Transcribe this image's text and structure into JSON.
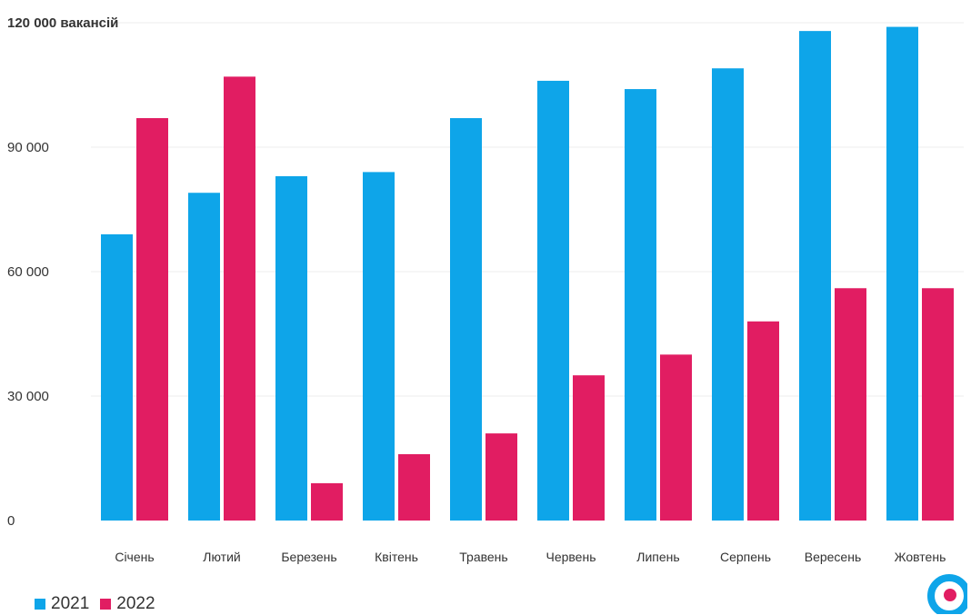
{
  "chart_data": {
    "type": "bar",
    "categories": [
      "Січень",
      "Лютий",
      "Березень",
      "Квітень",
      "Травень",
      "Червень",
      "Липень",
      "Серпень",
      "Вересень",
      "Жовтень"
    ],
    "series": [
      {
        "name": "2021",
        "color": "#0ea5e9",
        "values": [
          69000,
          79000,
          83000,
          84000,
          97000,
          106000,
          104000,
          109000,
          118000,
          119000
        ]
      },
      {
        "name": "2022",
        "color": "#e11d62",
        "values": [
          97000,
          107000,
          9000,
          16000,
          21000,
          35000,
          40000,
          48000,
          56000,
          56000
        ]
      }
    ],
    "ylim": [
      0,
      120000
    ],
    "yticks": [
      {
        "value": 0,
        "label": "0"
      },
      {
        "value": 30000,
        "label": "30 000"
      },
      {
        "value": 60000,
        "label": "60 000"
      },
      {
        "value": 90000,
        "label": "90 000"
      },
      {
        "value": 120000,
        "label": "120 000 вакансій"
      }
    ],
    "grid": true,
    "legend": "bottom-left"
  },
  "legend": {
    "items": [
      "2021",
      "2022"
    ]
  },
  "logo": {
    "name": "logo-mark",
    "outer_color": "#0ea5e9",
    "inner_color": "#e11d62"
  }
}
